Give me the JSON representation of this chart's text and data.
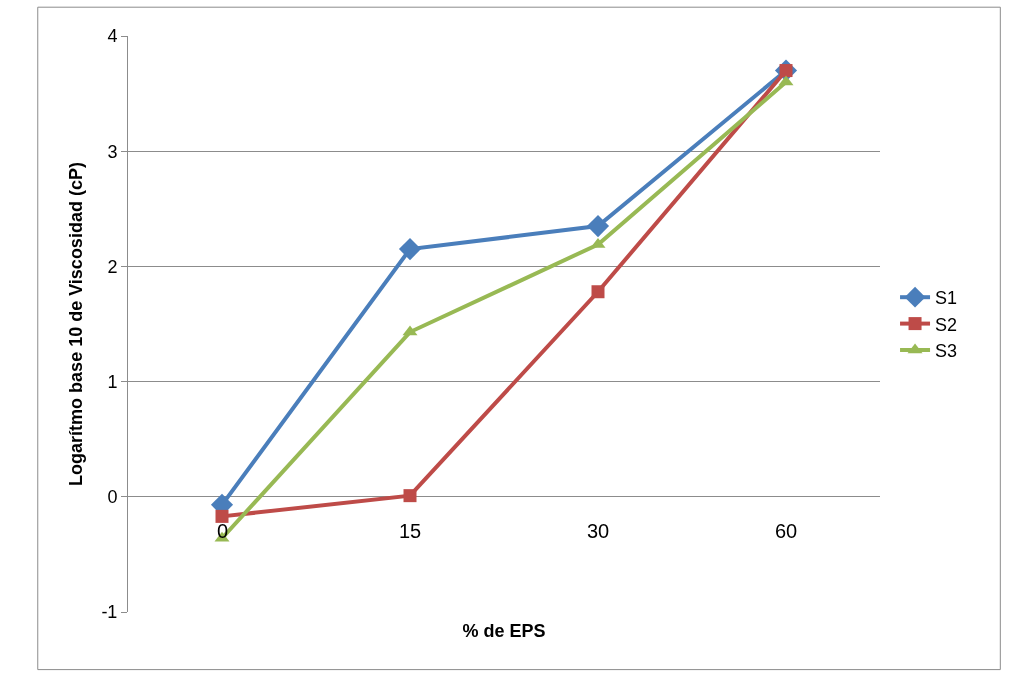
{
  "chart_data": {
    "type": "line",
    "xlabel": "% de EPS",
    "ylabel": "Logarítmo base 10 de Viscosidad (cP)",
    "categories": [
      "0",
      "15",
      "30",
      "60"
    ],
    "series": [
      {
        "name": "S1",
        "color": "#4a7ebb",
        "marker": "diamond",
        "values": [
          -0.07,
          2.15,
          2.35,
          3.7
        ]
      },
      {
        "name": "S2",
        "color": "#be4b48",
        "marker": "square",
        "values": [
          -0.17,
          0.01,
          1.78,
          3.7
        ]
      },
      {
        "name": "S3",
        "color": "#98b954",
        "marker": "triangle",
        "values": [
          -0.36,
          1.43,
          2.19,
          3.6
        ]
      }
    ],
    "ylim": [
      -1,
      4
    ],
    "yticks": [
      -1,
      0,
      1,
      2,
      3,
      4
    ],
    "grid": "y",
    "legend": "right"
  }
}
